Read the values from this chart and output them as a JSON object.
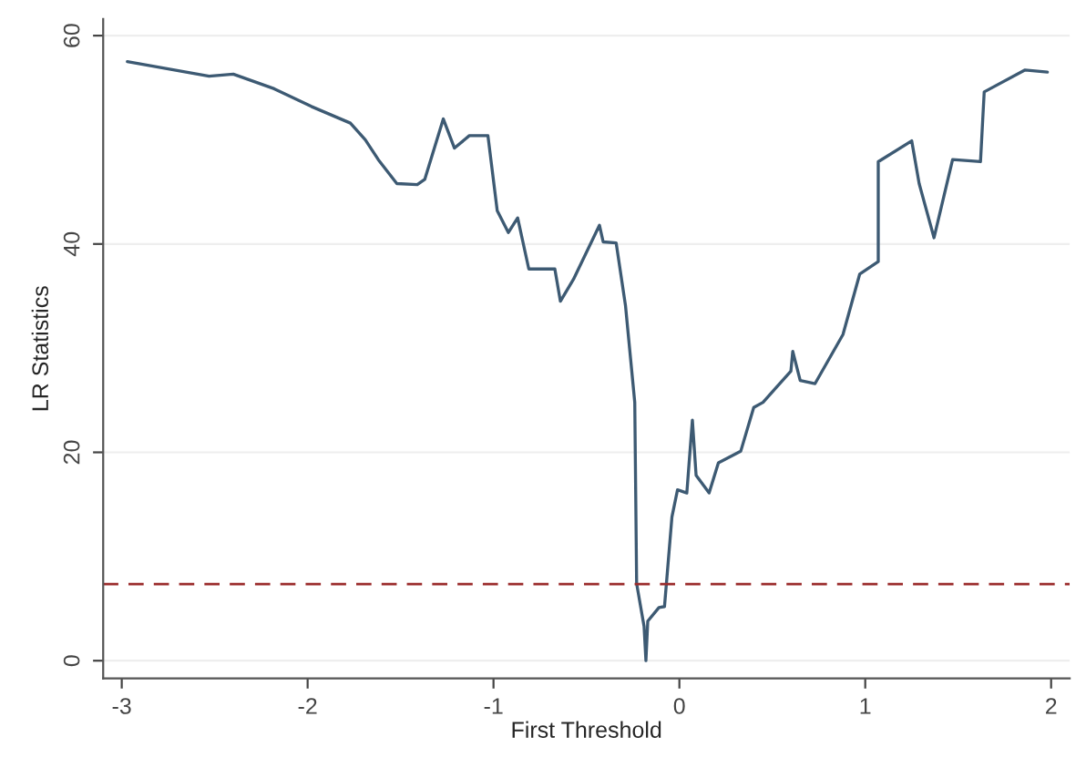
{
  "chart_data": {
    "type": "line",
    "xlabel": "First Threshold",
    "ylabel": "LR Statistics",
    "xlim": [
      -3.1,
      2.1
    ],
    "ylim": [
      -1.7,
      61.6
    ],
    "xticks": [
      -3,
      -2,
      -1,
      0,
      1,
      2
    ],
    "yticks": [
      0,
      20,
      40,
      60
    ],
    "grid": "y",
    "legend": false,
    "series": [
      {
        "color": "#3d5a73",
        "x": [
          -2.97,
          -2.53,
          -2.4,
          -2.18,
          -1.98,
          -1.77,
          -1.69,
          -1.62,
          -1.52,
          -1.41,
          -1.37,
          -1.27,
          -1.21,
          -1.13,
          -1.03,
          -0.98,
          -0.92,
          -0.87,
          -0.81,
          -0.7,
          -0.67,
          -0.64,
          -0.57,
          -0.43,
          -0.41,
          -0.34,
          -0.29,
          -0.24,
          -0.23,
          -0.19,
          -0.18,
          -0.17,
          -0.11,
          -0.08,
          -0.04,
          -0.01,
          0.04,
          0.07,
          0.09,
          0.16,
          0.21,
          0.33,
          0.4,
          0.45,
          0.51,
          0.6,
          0.61,
          0.65,
          0.73,
          0.88,
          0.97,
          1.07,
          1.07,
          1.25,
          1.29,
          1.37,
          1.47,
          1.62,
          1.64,
          1.86,
          1.98
        ],
        "values": [
          57.5,
          56.1,
          56.3,
          54.9,
          53.2,
          51.6,
          50.0,
          48.1,
          45.8,
          45.7,
          46.2,
          52.0,
          49.2,
          50.4,
          50.4,
          43.2,
          41.1,
          42.5,
          37.6,
          37.6,
          37.6,
          34.5,
          36.6,
          41.8,
          40.2,
          40.1,
          34.1,
          24.8,
          7.4,
          3.3,
          0,
          3.8,
          5.1,
          5.2,
          13.8,
          16.4,
          16.1,
          23.1,
          17.8,
          16.1,
          19.0,
          20.1,
          24.3,
          24.8,
          26.0,
          27.8,
          29.7,
          26.9,
          26.6,
          31.3,
          37.1,
          38.3,
          47.9,
          49.9,
          45.8,
          40.6,
          48.1,
          47.9,
          54.6,
          56.7,
          56.5
        ]
      }
    ],
    "ref_lines": [
      {
        "axis": "y",
        "value": 7.35,
        "color": "#9b2c2c",
        "line_style": "dashed"
      }
    ]
  }
}
